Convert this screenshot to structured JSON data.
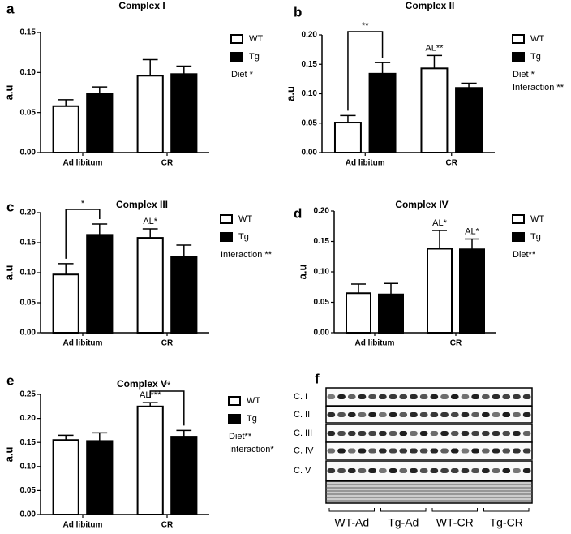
{
  "chart_data": [
    {
      "type": "bar",
      "panel": "a",
      "title": "Complex I",
      "y_label": "a.u",
      "categories": [
        "Ad libitum",
        "CR"
      ],
      "series": [
        {
          "name": "WT",
          "color": "#ffffff",
          "values": [
            0.058,
            0.096
          ],
          "errors": [
            0.008,
            0.02
          ]
        },
        {
          "name": "Tg",
          "color": "#000000",
          "values": [
            0.073,
            0.098
          ],
          "errors": [
            0.009,
            0.01
          ]
        }
      ],
      "ylim": [
        0,
        0.15
      ],
      "yticks": [
        {
          "value": 0,
          "label": "0.00"
        },
        0.05,
        {
          "value": 0.1,
          "label": "0.10"
        },
        0.15
      ],
      "notes": [
        "Diet *"
      ],
      "annotations": []
    },
    {
      "type": "bar",
      "panel": "b",
      "title": "Complex II",
      "y_label": "a.u",
      "categories": [
        "Ad libitum",
        "CR"
      ],
      "series": [
        {
          "name": "WT",
          "color": "#ffffff",
          "values": [
            0.051,
            0.143
          ],
          "errors": [
            0.012,
            0.022
          ]
        },
        {
          "name": "Tg",
          "color": "#000000",
          "values": [
            0.134,
            0.11
          ],
          "errors": [
            0.019,
            0.008
          ]
        }
      ],
      "ylim": [
        0,
        0.2
      ],
      "yticks": [
        {
          "value": 0,
          "label": "0.00"
        },
        0.05,
        {
          "value": 0.1,
          "label": "0.10"
        },
        0.15,
        {
          "value": 0.2,
          "label": "0.20"
        }
      ],
      "notes": [
        "Diet *",
        "Interaction **"
      ],
      "annotations": [
        "**",
        "AL**"
      ]
    },
    {
      "type": "bar",
      "panel": "c",
      "title": "Complex III",
      "y_label": "a.u",
      "categories": [
        "Ad libitum",
        "CR"
      ],
      "series": [
        {
          "name": "WT",
          "color": "#ffffff",
          "values": [
            0.097,
            0.158
          ],
          "errors": [
            0.018,
            0.015
          ]
        },
        {
          "name": "Tg",
          "color": "#000000",
          "values": [
            0.163,
            0.126
          ],
          "errors": [
            0.018,
            0.02
          ]
        }
      ],
      "ylim": [
        0,
        0.2
      ],
      "yticks": [
        {
          "value": 0,
          "label": "0.00"
        },
        0.05,
        {
          "value": 0.1,
          "label": "0.10"
        },
        0.15,
        {
          "value": 0.2,
          "label": "0.20"
        }
      ],
      "notes": [
        "Interaction **"
      ],
      "annotations": [
        "*",
        "AL*"
      ]
    },
    {
      "type": "bar",
      "panel": "d",
      "title": "Complex IV",
      "y_label": "a.u",
      "categories": [
        "Ad libitum",
        "CR"
      ],
      "series": [
        {
          "name": "WT",
          "color": "#ffffff",
          "values": [
            0.065,
            0.138
          ],
          "errors": [
            0.015,
            0.03
          ]
        },
        {
          "name": "Tg",
          "color": "#000000",
          "values": [
            0.063,
            0.137
          ],
          "errors": [
            0.018,
            0.017
          ]
        }
      ],
      "ylim": [
        0,
        0.2
      ],
      "yticks": [
        {
          "value": 0,
          "label": "0.00"
        },
        0.05,
        {
          "value": 0.1,
          "label": "0.10"
        },
        0.15,
        {
          "value": 0.2,
          "label": "0.20"
        }
      ],
      "notes": [
        "Diet**"
      ],
      "annotations": [
        "AL*",
        "AL*"
      ]
    },
    {
      "type": "bar",
      "panel": "e",
      "title": "Complex V",
      "y_label": "a.u",
      "categories": [
        "Ad libitum",
        "CR"
      ],
      "series": [
        {
          "name": "WT",
          "color": "#ffffff",
          "values": [
            0.155,
            0.225
          ],
          "errors": [
            0.01,
            0.008
          ]
        },
        {
          "name": "Tg",
          "color": "#000000",
          "values": [
            0.153,
            0.162
          ],
          "errors": [
            0.017,
            0.013
          ]
        }
      ],
      "ylim": [
        0,
        0.25
      ],
      "yticks": [
        {
          "value": 0,
          "label": "0.00"
        },
        0.05,
        {
          "value": 0.1,
          "label": "0.10"
        },
        0.15,
        {
          "value": 0.2,
          "label": "0.20"
        },
        0.25
      ],
      "notes": [
        "Diet**",
        "Interaction*"
      ],
      "annotations": [
        "**",
        "AL***"
      ]
    }
  ],
  "blot": {
    "panel": "f",
    "rows": [
      "C. I",
      "C. II",
      "C. III",
      "C. IV",
      "C. V"
    ],
    "groups": [
      "WT-Ad",
      "Tg-Ad",
      "WT-CR",
      "Tg-CR"
    ]
  }
}
